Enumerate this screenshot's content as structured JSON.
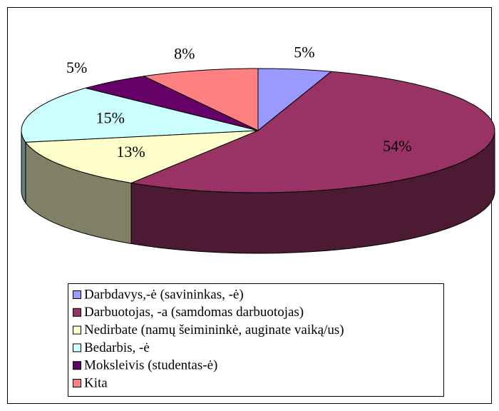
{
  "chart_data": {
    "type": "pie3d",
    "categories": [
      "Darbdavys,-ė (savininkas, -ė)",
      "Darbuotojas, -a (samdomas darbuotojas)",
      "Nedirbate (namų šeimininkė, auginate vaiką/us)",
      "Bedarbis, -ė",
      "Moksleivis (studentas-ė)",
      "Kita"
    ],
    "values": [
      5,
      54,
      13,
      15,
      5,
      8
    ],
    "value_labels": [
      "5%",
      "54%",
      "13%",
      "15%",
      "5%",
      "8%"
    ],
    "colors": [
      "#9999ff",
      "#993366",
      "#ffffcc",
      "#ccffff",
      "#660066",
      "#ff8080"
    ],
    "legend": "bottom"
  }
}
